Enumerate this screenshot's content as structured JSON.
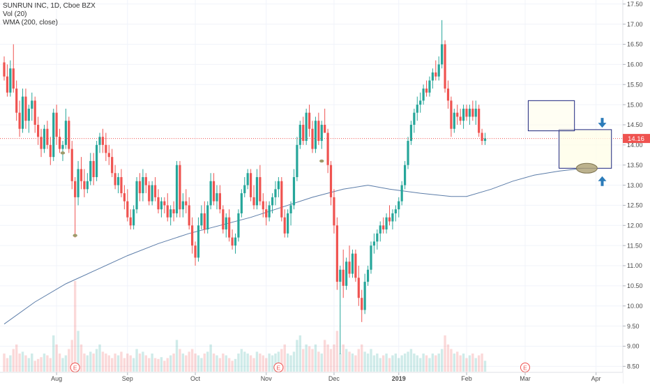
{
  "legend": {
    "symbol": "SUNRUN INC, 1D, Cboe BZX",
    "volume": "Vol (20)",
    "wma": "WMA (200, close)"
  },
  "price_tag": "14.16",
  "earnings_marker": "E",
  "colors": {
    "up": "#26a69a",
    "down": "#ef5350",
    "wma": "#5b7ca8",
    "price_line": "#ef5350",
    "annotation_arrow": "#2b7bb9",
    "annotation_box_fill": "#fffde7",
    "annotation_box_stroke": "#1a237e",
    "ellipse": "#b0a57a"
  },
  "chart_data": {
    "type": "candlestick",
    "title": "SUNRUN INC, 1D, Cboe BZX",
    "ylim": [
      8.35,
      17.6
    ],
    "y_ticks": [
      "17.50",
      "17.00",
      "16.50",
      "16.00",
      "15.50",
      "15.00",
      "14.50",
      "14.00",
      "13.50",
      "13.00",
      "12.50",
      "12.00",
      "11.50",
      "11.00",
      "10.50",
      "10.00",
      "9.50",
      "9.00",
      "8.50"
    ],
    "x_ticks": [
      {
        "label": "Aug",
        "i": 17
      },
      {
        "label": "Sep",
        "i": 40
      },
      {
        "label": "Oct",
        "i": 62
      },
      {
        "label": "Nov",
        "i": 85
      },
      {
        "label": "Dec",
        "i": 107
      },
      {
        "label": "2019",
        "i": 128
      },
      {
        "label": "Feb",
        "i": 150
      },
      {
        "label": "Mar",
        "i": 169
      },
      {
        "label": "Apr",
        "i": 192
      }
    ],
    "earnings_i": [
      23,
      89,
      169
    ],
    "last_price": 14.16,
    "candles": [
      [
        16.05,
        16.2,
        15.6,
        15.7
      ],
      [
        15.7,
        16.0,
        15.2,
        15.3
      ],
      [
        15.3,
        16.1,
        15.2,
        15.9
      ],
      [
        15.9,
        16.5,
        15.3,
        15.4
      ],
      [
        15.4,
        15.6,
        14.6,
        14.8
      ],
      [
        14.8,
        15.1,
        14.2,
        14.4
      ],
      [
        14.4,
        15.4,
        14.3,
        15.2
      ],
      [
        15.2,
        15.4,
        14.4,
        14.6
      ],
      [
        14.6,
        15.0,
        14.3,
        14.9
      ],
      [
        14.9,
        15.3,
        14.6,
        15.1
      ],
      [
        15.1,
        15.2,
        14.3,
        14.5
      ],
      [
        14.5,
        14.7,
        14.0,
        14.2
      ],
      [
        14.2,
        14.4,
        13.7,
        13.9
      ],
      [
        13.9,
        14.5,
        13.8,
        14.4
      ],
      [
        14.4,
        14.6,
        13.9,
        14.0
      ],
      [
        14.0,
        14.2,
        13.5,
        13.7
      ],
      [
        13.7,
        14.9,
        13.6,
        14.8
      ],
      [
        14.8,
        15.0,
        14.0,
        14.2
      ],
      [
        14.2,
        14.4,
        13.8,
        13.9
      ],
      [
        13.9,
        14.1,
        13.6,
        14.0
      ],
      [
        14.0,
        14.9,
        13.9,
        14.6
      ],
      [
        14.6,
        14.7,
        13.8,
        13.9
      ],
      [
        13.9,
        14.1,
        12.9,
        13.1
      ],
      [
        13.1,
        13.2,
        11.7,
        12.7
      ],
      [
        12.7,
        13.6,
        12.5,
        13.4
      ],
      [
        13.4,
        13.7,
        12.9,
        13.1
      ],
      [
        13.1,
        13.4,
        12.7,
        12.9
      ],
      [
        12.9,
        13.3,
        12.8,
        13.1
      ],
      [
        13.1,
        13.8,
        13.0,
        13.6
      ],
      [
        13.6,
        13.8,
        13.0,
        13.2
      ],
      [
        13.2,
        14.1,
        13.1,
        14.0
      ],
      [
        14.0,
        14.3,
        13.8,
        14.2
      ],
      [
        14.2,
        14.4,
        13.8,
        14.0
      ],
      [
        14.0,
        14.3,
        13.6,
        13.8
      ],
      [
        13.8,
        14.0,
        13.5,
        13.7
      ],
      [
        13.7,
        13.9,
        13.2,
        13.3
      ],
      [
        13.3,
        13.5,
        12.9,
        13.0
      ],
      [
        13.0,
        13.3,
        12.8,
        13.2
      ],
      [
        13.2,
        13.4,
        12.7,
        12.8
      ],
      [
        12.8,
        13.0,
        12.4,
        12.6
      ],
      [
        12.6,
        12.9,
        12.1,
        12.2
      ],
      [
        12.2,
        12.4,
        11.9,
        12.0
      ],
      [
        12.0,
        12.5,
        11.9,
        12.4
      ],
      [
        12.4,
        13.2,
        12.3,
        13.1
      ],
      [
        13.1,
        13.3,
        12.6,
        12.8
      ],
      [
        12.8,
        13.4,
        12.6,
        13.2
      ],
      [
        13.2,
        13.3,
        12.8,
        13.0
      ],
      [
        13.0,
        13.1,
        12.5,
        12.6
      ],
      [
        12.6,
        13.1,
        12.5,
        13.0
      ],
      [
        13.0,
        13.2,
        12.6,
        12.7
      ],
      [
        12.7,
        12.9,
        12.3,
        12.4
      ],
      [
        12.4,
        12.7,
        12.2,
        12.6
      ],
      [
        12.6,
        12.7,
        12.3,
        12.5
      ],
      [
        12.5,
        12.8,
        12.1,
        12.2
      ],
      [
        12.2,
        12.5,
        12.0,
        12.4
      ],
      [
        12.4,
        12.6,
        12.1,
        12.3
      ],
      [
        12.3,
        13.6,
        12.2,
        13.5
      ],
      [
        13.5,
        13.6,
        12.2,
        12.4
      ],
      [
        12.4,
        12.8,
        12.2,
        12.6
      ],
      [
        12.6,
        12.9,
        12.3,
        12.5
      ],
      [
        12.5,
        12.7,
        11.9,
        12.0
      ],
      [
        12.0,
        12.2,
        11.3,
        11.5
      ],
      [
        11.5,
        11.6,
        11.0,
        11.2
      ],
      [
        11.2,
        12.2,
        11.1,
        12.0
      ],
      [
        12.0,
        12.5,
        11.9,
        12.3
      ],
      [
        12.3,
        12.6,
        11.8,
        11.9
      ],
      [
        11.9,
        12.6,
        11.8,
        12.5
      ],
      [
        12.5,
        13.3,
        12.4,
        13.1
      ],
      [
        13.1,
        13.3,
        12.5,
        12.6
      ],
      [
        12.6,
        13.0,
        12.4,
        12.8
      ],
      [
        12.8,
        13.0,
        12.3,
        12.4
      ],
      [
        12.4,
        12.5,
        11.8,
        11.9
      ],
      [
        11.9,
        12.3,
        11.7,
        12.2
      ],
      [
        12.2,
        12.4,
        11.6,
        11.7
      ],
      [
        11.7,
        11.9,
        11.4,
        11.5
      ],
      [
        11.5,
        11.8,
        11.3,
        11.7
      ],
      [
        11.7,
        12.4,
        11.6,
        12.3
      ],
      [
        12.3,
        12.9,
        12.2,
        12.8
      ],
      [
        12.8,
        13.2,
        12.7,
        13.0
      ],
      [
        13.0,
        13.4,
        12.9,
        13.3
      ],
      [
        13.3,
        13.4,
        12.6,
        12.7
      ],
      [
        12.7,
        13.0,
        12.4,
        12.5
      ],
      [
        12.5,
        13.4,
        12.4,
        13.2
      ],
      [
        13.2,
        13.5,
        12.5,
        12.6
      ],
      [
        12.6,
        12.8,
        12.2,
        12.4
      ],
      [
        12.4,
        12.6,
        12.0,
        12.2
      ],
      [
        12.2,
        12.6,
        12.1,
        12.5
      ],
      [
        12.5,
        12.8,
        12.3,
        12.7
      ],
      [
        12.7,
        13.1,
        12.5,
        12.9
      ],
      [
        12.9,
        13.2,
        12.7,
        13.1
      ],
      [
        13.1,
        13.2,
        12.1,
        12.2
      ],
      [
        12.2,
        12.4,
        11.7,
        11.8
      ],
      [
        11.8,
        12.4,
        11.7,
        12.3
      ],
      [
        12.3,
        12.6,
        12.0,
        12.5
      ],
      [
        12.5,
        13.4,
        12.4,
        13.2
      ],
      [
        13.2,
        14.2,
        13.1,
        14.0
      ],
      [
        14.0,
        14.6,
        13.9,
        14.5
      ],
      [
        14.5,
        14.7,
        14.0,
        14.1
      ],
      [
        14.1,
        14.9,
        14.0,
        14.8
      ],
      [
        14.8,
        15.0,
        14.2,
        14.4
      ],
      [
        14.4,
        14.6,
        13.8,
        13.9
      ],
      [
        13.9,
        14.7,
        13.8,
        14.6
      ],
      [
        14.6,
        14.8,
        14.0,
        14.1
      ],
      [
        14.1,
        14.6,
        13.9,
        14.5
      ],
      [
        14.5,
        14.9,
        14.3,
        14.3
      ],
      [
        14.3,
        14.4,
        13.3,
        13.5
      ],
      [
        13.5,
        13.6,
        12.5,
        12.7
      ],
      [
        12.7,
        12.9,
        11.8,
        12.0
      ],
      [
        12.0,
        12.2,
        10.4,
        10.6
      ],
      [
        10.6,
        11.0,
        8.8,
        10.9
      ],
      [
        10.9,
        11.4,
        10.2,
        10.5
      ],
      [
        10.5,
        11.2,
        10.4,
        11.1
      ],
      [
        11.1,
        11.5,
        10.7,
        10.8
      ],
      [
        10.8,
        11.4,
        10.7,
        11.3
      ],
      [
        11.3,
        11.4,
        10.6,
        10.7
      ],
      [
        10.7,
        11.0,
        10.0,
        10.2
      ],
      [
        10.2,
        10.4,
        9.6,
        9.9
      ],
      [
        9.9,
        10.8,
        9.8,
        10.6
      ],
      [
        10.6,
        11.0,
        10.5,
        10.9
      ],
      [
        10.9,
        11.6,
        10.8,
        11.5
      ],
      [
        11.5,
        11.8,
        11.3,
        11.6
      ],
      [
        11.6,
        11.9,
        11.4,
        11.8
      ],
      [
        11.8,
        12.1,
        11.6,
        12.0
      ],
      [
        12.0,
        12.2,
        11.8,
        11.9
      ],
      [
        11.9,
        12.3,
        11.8,
        12.2
      ],
      [
        12.2,
        12.5,
        12.0,
        12.1
      ],
      [
        12.1,
        12.4,
        11.9,
        12.3
      ],
      [
        12.3,
        12.5,
        12.1,
        12.4
      ],
      [
        12.4,
        12.7,
        12.2,
        12.6
      ],
      [
        12.6,
        13.1,
        12.5,
        13.0
      ],
      [
        13.0,
        13.6,
        12.9,
        13.5
      ],
      [
        13.5,
        14.2,
        13.4,
        14.1
      ],
      [
        14.1,
        14.6,
        14.0,
        14.5
      ],
      [
        14.5,
        14.9,
        14.3,
        14.8
      ],
      [
        14.8,
        15.2,
        14.6,
        15.0
      ],
      [
        15.0,
        15.3,
        14.8,
        15.1
      ],
      [
        15.1,
        15.5,
        15.0,
        15.4
      ],
      [
        15.4,
        15.6,
        15.2,
        15.3
      ],
      [
        15.3,
        15.7,
        15.2,
        15.6
      ],
      [
        15.6,
        15.9,
        15.4,
        15.8
      ],
      [
        15.8,
        16.1,
        15.6,
        15.7
      ],
      [
        15.7,
        16.2,
        15.6,
        16.0
      ],
      [
        16.0,
        17.1,
        15.9,
        16.5
      ],
      [
        16.5,
        16.6,
        15.3,
        15.4
      ],
      [
        15.4,
        15.6,
        14.9,
        15.1
      ],
      [
        15.1,
        15.2,
        14.2,
        14.4
      ],
      [
        14.4,
        14.9,
        14.3,
        14.8
      ],
      [
        14.8,
        15.0,
        14.5,
        14.7
      ],
      [
        14.7,
        14.9,
        14.5,
        14.6
      ],
      [
        14.6,
        15.0,
        14.4,
        14.9
      ],
      [
        14.9,
        15.0,
        14.6,
        14.7
      ],
      [
        14.7,
        15.0,
        14.5,
        14.9
      ],
      [
        14.9,
        15.1,
        14.6,
        14.7
      ],
      [
        14.7,
        15.1,
        14.5,
        14.9
      ],
      [
        14.9,
        15.0,
        14.2,
        14.3
      ],
      [
        14.3,
        14.4,
        14.0,
        14.1
      ],
      [
        14.1,
        14.3,
        14.0,
        14.16
      ]
    ],
    "volume_bar_heights_relative": [
      0.2,
      0.15,
      0.18,
      0.25,
      0.3,
      0.2,
      0.22,
      0.18,
      0.15,
      0.2,
      0.12,
      0.14,
      0.16,
      0.2,
      0.18,
      0.15,
      0.4,
      0.3,
      0.2,
      0.15,
      0.18,
      0.25,
      0.35,
      1.0,
      0.45,
      0.3,
      0.2,
      0.18,
      0.22,
      0.2,
      0.25,
      0.3,
      0.22,
      0.2,
      0.18,
      0.15,
      0.2,
      0.18,
      0.22,
      0.15,
      0.2,
      0.18,
      0.15,
      0.25,
      0.2,
      0.22,
      0.18,
      0.15,
      0.2,
      0.15,
      0.14,
      0.16,
      0.12,
      0.15,
      0.18,
      0.2,
      0.35,
      0.25,
      0.2,
      0.18,
      0.22,
      0.25,
      0.2,
      0.18,
      0.15,
      0.2,
      0.22,
      0.3,
      0.2,
      0.18,
      0.15,
      0.2,
      0.18,
      0.15,
      0.12,
      0.14,
      0.2,
      0.25,
      0.22,
      0.2,
      0.18,
      0.15,
      0.22,
      0.2,
      0.18,
      0.15,
      0.2,
      0.18,
      0.2,
      0.22,
      0.25,
      0.3,
      0.2,
      0.18,
      0.22,
      0.35,
      0.4,
      0.25,
      0.3,
      0.28,
      0.25,
      0.3,
      0.22,
      0.2,
      0.35,
      0.3,
      0.25,
      0.3,
      0.45,
      0.2,
      0.3,
      0.25,
      0.22,
      0.2,
      0.18,
      0.25,
      0.3,
      0.22,
      0.2,
      0.25,
      0.18,
      0.2,
      0.15,
      0.18,
      0.2,
      0.15,
      0.18,
      0.2,
      0.15,
      0.18,
      0.2,
      0.22,
      0.25,
      0.2,
      0.18,
      0.15,
      0.2,
      0.18,
      0.15,
      0.2,
      0.18,
      0.2,
      0.25,
      0.4,
      0.3,
      0.25,
      0.2,
      0.22,
      0.18,
      0.2,
      0.15,
      0.18,
      0.2,
      0.15,
      0.18,
      0.2,
      0.12
    ],
    "wma_points": [
      [
        0,
        9.55
      ],
      [
        10,
        10.1
      ],
      [
        20,
        10.55
      ],
      [
        30,
        10.9
      ],
      [
        40,
        11.25
      ],
      [
        50,
        11.55
      ],
      [
        60,
        11.8
      ],
      [
        70,
        12.0
      ],
      [
        80,
        12.2
      ],
      [
        90,
        12.45
      ],
      [
        100,
        12.7
      ],
      [
        110,
        12.9
      ],
      [
        118,
        13.0
      ],
      [
        125,
        12.9
      ],
      [
        135,
        12.8
      ],
      [
        145,
        12.72
      ],
      [
        150,
        12.72
      ],
      [
        158,
        12.9
      ],
      [
        165,
        13.1
      ],
      [
        172,
        13.25
      ],
      [
        180,
        13.35
      ],
      [
        188,
        13.42
      ]
    ],
    "annotation": {
      "upper_box": {
        "i0": 170,
        "i1": 185,
        "y_top": 15.1,
        "y_bottom": 14.35
      },
      "lower_box": {
        "i0": 180,
        "i1": 197,
        "y_top": 14.38,
        "y_bottom": 13.42
      },
      "ellipse": {
        "i": 189,
        "y": 13.42
      },
      "down_arrow": {
        "i": 194,
        "y": 14.55
      },
      "up_arrow": {
        "i": 194,
        "y": 13.1
      }
    }
  }
}
